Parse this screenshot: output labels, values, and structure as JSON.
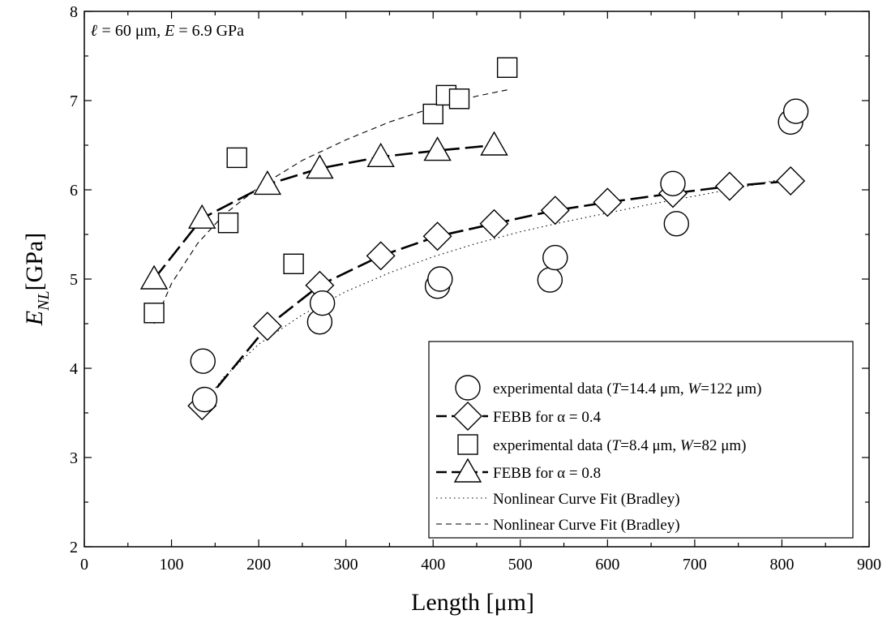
{
  "chart_data": {
    "type": "scatter",
    "annotation": {
      "ell": "ℓ",
      "text1": " = 60 μm, ",
      "e": "E",
      "text2": " = 6.9 GPa"
    },
    "xlabel": "Length [μm]",
    "ylabel": {
      "main": "E",
      "sub": "NL",
      "unit": "[GPa]"
    },
    "xlim": [
      0,
      900
    ],
    "ylim": [
      2,
      8
    ],
    "xticks": [
      0,
      100,
      200,
      300,
      400,
      500,
      600,
      700,
      800,
      900
    ],
    "yticks": [
      2,
      3,
      4,
      5,
      6,
      7,
      8
    ],
    "series": [
      {
        "name": "experimental data (T=14.4 μm, W=122 μm)",
        "legend_parts": [
          [
            "experimental data (",
            false
          ],
          [
            "T",
            true
          ],
          [
            "=14.4 μm, ",
            false
          ],
          [
            "W",
            true
          ],
          [
            "=122 μm)",
            false
          ]
        ],
        "marker": "circle",
        "line": "none",
        "x": [
          136,
          138,
          270,
          273,
          405,
          408,
          534,
          540,
          675,
          679,
          810,
          816
        ],
        "y": [
          4.08,
          3.65,
          4.52,
          4.73,
          4.92,
          5.0,
          4.99,
          5.24,
          6.07,
          5.62,
          6.76,
          6.88
        ]
      },
      {
        "name": "FEBB for α = 0.4",
        "legend_parts": [
          [
            "FEBB for α = 0.4",
            false
          ]
        ],
        "marker": "diamond",
        "line": "longdash",
        "x": [
          135,
          210,
          270,
          340,
          405,
          470,
          540,
          600,
          675,
          740,
          810
        ],
        "y": [
          3.58,
          4.47,
          4.93,
          5.26,
          5.48,
          5.62,
          5.77,
          5.86,
          5.96,
          6.04,
          6.1
        ]
      },
      {
        "name": "experimental data (T=8.4 μm, W=82 μm)",
        "legend_parts": [
          [
            "experimental data (",
            false
          ],
          [
            "T",
            true
          ],
          [
            "=8.4 μm, ",
            false
          ],
          [
            "W",
            true
          ],
          [
            "=82 μm)",
            false
          ]
        ],
        "marker": "square",
        "line": "none",
        "x": [
          80,
          165,
          175,
          240,
          400,
          415,
          430,
          485
        ],
        "y": [
          4.62,
          5.63,
          6.36,
          5.17,
          6.85,
          7.06,
          7.02,
          7.37
        ]
      },
      {
        "name": "FEBB for α = 0.8",
        "legend_parts": [
          [
            "FEBB for α = 0.8",
            false
          ]
        ],
        "marker": "triangle",
        "line": "longdash",
        "x": [
          80,
          135,
          210,
          270,
          340,
          405,
          470
        ],
        "y": [
          5.0,
          5.68,
          6.06,
          6.24,
          6.37,
          6.44,
          6.5
        ]
      },
      {
        "name": "Nonlinear Curve Fit (Bradley)",
        "legend_parts": [
          [
            "Nonlinear Curve Fit (Bradley)",
            false
          ]
        ],
        "marker": "none",
        "line": "dotted",
        "x": [
          135,
          160,
          200,
          250,
          300,
          350,
          400,
          450,
          500,
          550,
          600,
          650,
          700,
          750,
          810
        ],
        "y": [
          3.58,
          3.9,
          4.27,
          4.6,
          4.86,
          5.07,
          5.25,
          5.4,
          5.53,
          5.64,
          5.74,
          5.84,
          5.93,
          6.02,
          6.14
        ]
      },
      {
        "name": "Nonlinear Curve Fit (Bradley)",
        "legend_parts": [
          [
            "Nonlinear Curve Fit (Bradley)",
            false
          ]
        ],
        "marker": "none",
        "line": "dashed",
        "x": [
          80,
          100,
          130,
          160,
          200,
          250,
          300,
          350,
          400,
          450,
          485
        ],
        "y": [
          4.5,
          4.95,
          5.4,
          5.72,
          6.03,
          6.33,
          6.56,
          6.76,
          6.92,
          7.05,
          7.12
        ]
      }
    ]
  }
}
